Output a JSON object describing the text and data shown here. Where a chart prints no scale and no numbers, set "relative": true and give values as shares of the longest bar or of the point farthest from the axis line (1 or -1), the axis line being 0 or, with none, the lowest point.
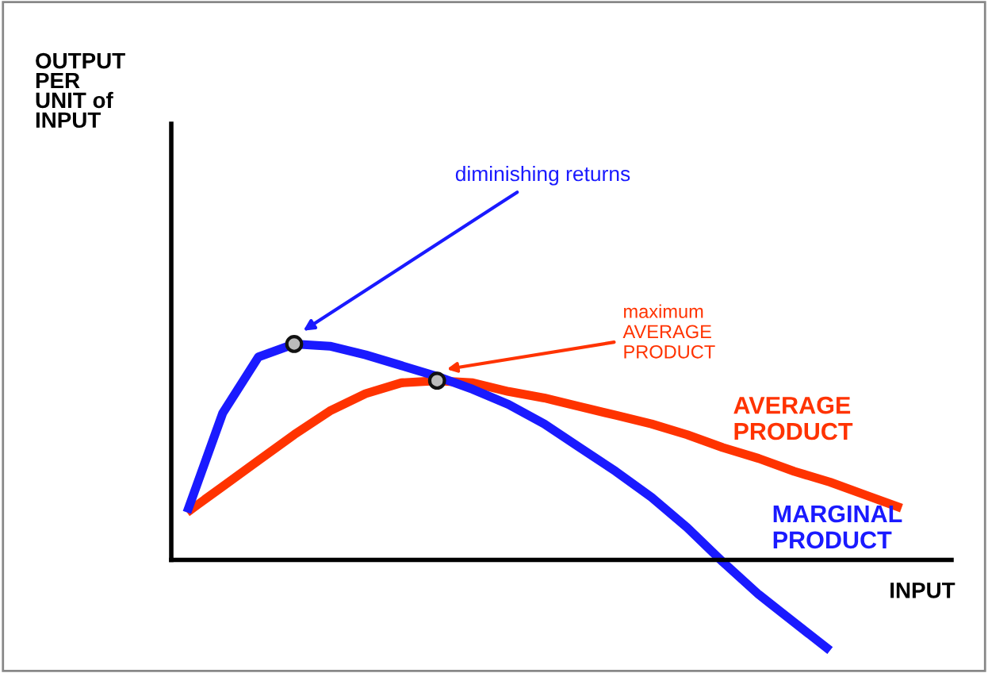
{
  "chart_data": {
    "type": "line",
    "relative": true,
    "xlabel": "INPUT",
    "categories": [
      null,
      null,
      null,
      null,
      null,
      null,
      null,
      null,
      null,
      null,
      null,
      null,
      null,
      null,
      null,
      null,
      null,
      null,
      null,
      null,
      null
    ],
    "series": [
      {
        "name": "AVERAGE\nPRODUCT",
        "color": "#ff3300",
        "values": [
          0.22,
          0.34,
          0.46,
          0.58,
          0.69,
          0.77,
          0.82,
          0.83,
          0.82,
          0.78,
          0.75,
          0.71,
          0.67,
          0.63,
          0.58,
          0.52,
          0.47,
          0.41,
          0.36,
          0.3,
          0.24
        ]
      },
      {
        "name": "MARGINAL\nPRODUCT",
        "color": "#1a1aff",
        "values": [
          0.22,
          0.68,
          0.94,
          1.0,
          0.99,
          0.95,
          0.9,
          0.85,
          0.79,
          0.72,
          0.63,
          0.52,
          0.41,
          0.29,
          0.15,
          -0.01,
          -0.16,
          -0.29,
          -0.42,
          null,
          null
        ]
      }
    ],
    "annotations": [
      "diminishing returns",
      "maximum\nAVERAGE\nPRODUCT",
      "OUTPUT\nPER\nUNIT of\nINPUT"
    ]
  }
}
